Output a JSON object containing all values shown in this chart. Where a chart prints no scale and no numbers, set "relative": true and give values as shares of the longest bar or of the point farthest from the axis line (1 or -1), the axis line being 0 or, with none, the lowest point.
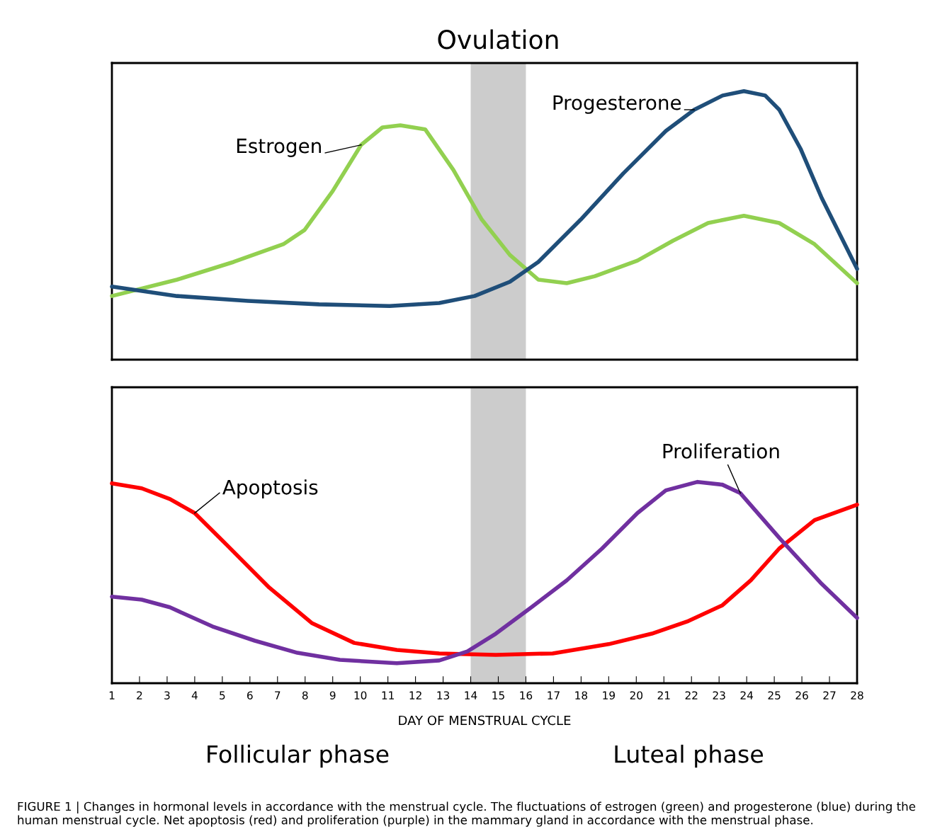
{
  "chart_data": [
    {
      "type": "line",
      "relative": true,
      "xlim": [
        1,
        28
      ],
      "xticks": [
        1,
        2,
        3,
        4,
        5,
        6,
        7,
        8,
        9,
        10,
        11,
        12,
        13,
        14,
        15,
        16,
        17,
        18,
        19,
        20,
        21,
        22,
        23,
        24,
        25,
        26,
        27,
        28
      ],
      "tick_labels": false,
      "grid": false,
      "legend": false,
      "marker": "none",
      "line_style": "solid",
      "bands": [
        {
          "axis": "x",
          "from": 14,
          "to": 16,
          "label": "Ovulation",
          "color": "#cccccc"
        }
      ],
      "series": [
        {
          "name": "Estrogen",
          "color": "#92d050",
          "x": [
            1,
            3.36,
            5.41,
            7.21,
            7.98,
            9.0,
            10.03,
            10.8,
            11.45,
            12.35,
            13.37,
            14.4,
            15.42,
            16.45,
            17.48,
            18.5,
            20.04,
            21.33,
            22.6,
            23.9,
            25.18,
            26.46,
            28
          ],
          "values": [
            0.237,
            0.298,
            0.364,
            0.43,
            0.483,
            0.628,
            0.8,
            0.865,
            0.873,
            0.858,
            0.707,
            0.522,
            0.39,
            0.298,
            0.285,
            0.311,
            0.369,
            0.443,
            0.509,
            0.536,
            0.509,
            0.43,
            0.285
          ]
        },
        {
          "name": "Progesterone",
          "color": "#1f4e79",
          "x": [
            1,
            3.36,
            5.93,
            8.5,
            11.06,
            12.86,
            14.14,
            15.42,
            16.45,
            17.99,
            19.53,
            21.07,
            22.1,
            23.13,
            23.9,
            24.67,
            25.18,
            25.95,
            26.72,
            28
          ],
          "values": [
            0.272,
            0.237,
            0.219,
            0.206,
            0.2,
            0.211,
            0.237,
            0.29,
            0.364,
            0.522,
            0.694,
            0.852,
            0.931,
            0.984,
            1.0,
            0.984,
            0.931,
            0.786,
            0.602,
            0.338
          ]
        }
      ]
    },
    {
      "type": "line",
      "relative": true,
      "xlim": [
        1,
        28
      ],
      "xticks": [
        1,
        2,
        3,
        4,
        5,
        6,
        7,
        8,
        9,
        10,
        11,
        12,
        13,
        14,
        15,
        16,
        17,
        18,
        19,
        20,
        21,
        22,
        23,
        24,
        25,
        26,
        27,
        28
      ],
      "tick_labels": "x",
      "grid": false,
      "legend": false,
      "marker": "none",
      "line_style": "solid",
      "xlabel": "DAY OF MENSTRUAL CYCLE",
      "bands": [
        {
          "axis": "x",
          "from": 14,
          "to": 16,
          "color": "#cccccc"
        }
      ],
      "series": [
        {
          "name": "Apoptosis",
          "color": "#ff0000",
          "x": [
            1,
            2.08,
            3.1,
            4.0,
            5.16,
            6.7,
            8.24,
            9.78,
            11.32,
            12.86,
            14.91,
            16.97,
            19.0,
            20.56,
            21.84,
            23.12,
            24.15,
            25.18,
            26.46,
            28
          ],
          "values": [
            0.993,
            0.968,
            0.915,
            0.845,
            0.687,
            0.475,
            0.299,
            0.2,
            0.165,
            0.148,
            0.141,
            0.148,
            0.194,
            0.246,
            0.306,
            0.387,
            0.511,
            0.669,
            0.81,
            0.887
          ]
        },
        {
          "name": "Proliferation",
          "color": "#7030a0",
          "x": [
            1,
            2.08,
            3.1,
            4.64,
            6.18,
            7.72,
            9.26,
            11.32,
            12.86,
            13.88,
            14.91,
            16.2,
            17.48,
            18.76,
            20.04,
            21.07,
            22.22,
            23.12,
            23.77,
            25.18,
            26.72,
            28
          ],
          "values": [
            0.43,
            0.415,
            0.377,
            0.282,
            0.211,
            0.151,
            0.116,
            0.099,
            0.113,
            0.158,
            0.246,
            0.377,
            0.511,
            0.669,
            0.845,
            0.958,
            1.0,
            0.986,
            0.944,
            0.722,
            0.493,
            0.324
          ]
        }
      ],
      "annotations": [
        "Follicular phase",
        "Luteal phase",
        "FIGURE 1 | Changes in hormonal levels in accordance with the menstrual cycle. The fluctuations of estrogen (green) and progesterone (blue) during the human menstrual cycle. Net apoptosis (red) and proliferation (purple) in the mammary gland in accordance with the menstrual phase."
      ]
    }
  ]
}
